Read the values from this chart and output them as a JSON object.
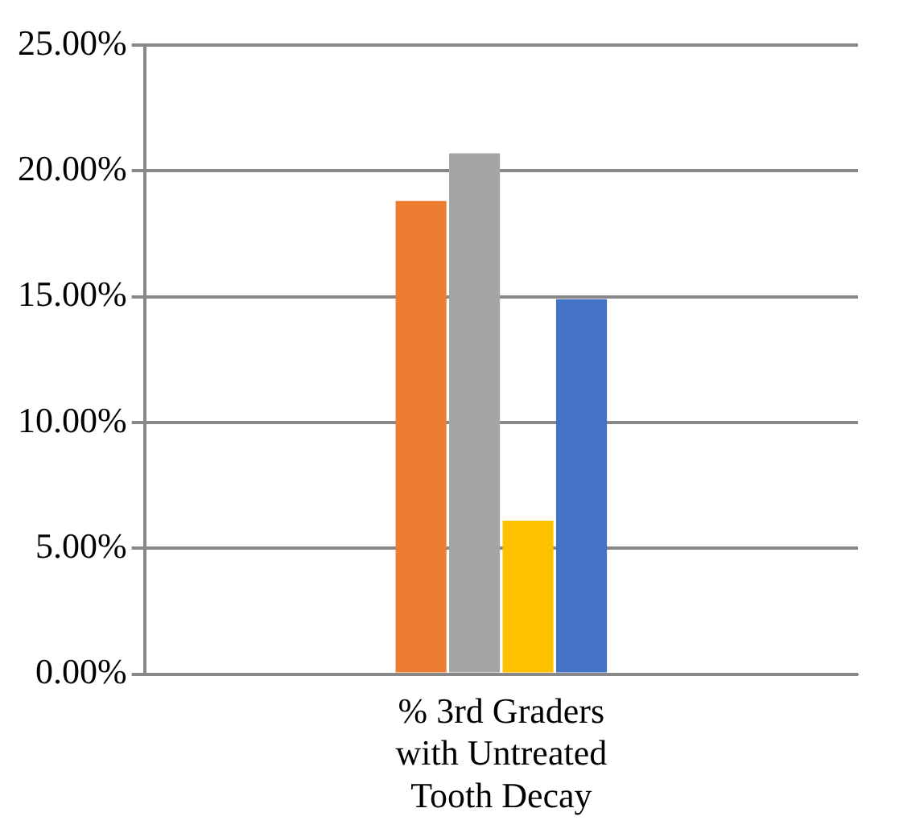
{
  "chart_data": {
    "type": "bar",
    "categories": [
      "% 3rd Graders with Untreated Tooth Decay"
    ],
    "series": [
      {
        "color": "#ed7d31",
        "values": [
          18.8
        ]
      },
      {
        "color": "#a5a5a5",
        "values": [
          20.7
        ]
      },
      {
        "color": "#ffc000",
        "values": [
          6.1
        ]
      },
      {
        "color": "#4472c4",
        "values": [
          14.9
        ]
      }
    ],
    "ylim": [
      0,
      25
    ],
    "yticks": [
      {
        "value": 0,
        "label": "0.00%"
      },
      {
        "value": 5,
        "label": "5.00%"
      },
      {
        "value": 10,
        "label": "10.00%"
      },
      {
        "value": 15,
        "label": "15.00%"
      },
      {
        "value": 20,
        "label": "20.00%"
      },
      {
        "value": 25,
        "label": "25.00%"
      }
    ],
    "grid": "y",
    "legend": false
  }
}
